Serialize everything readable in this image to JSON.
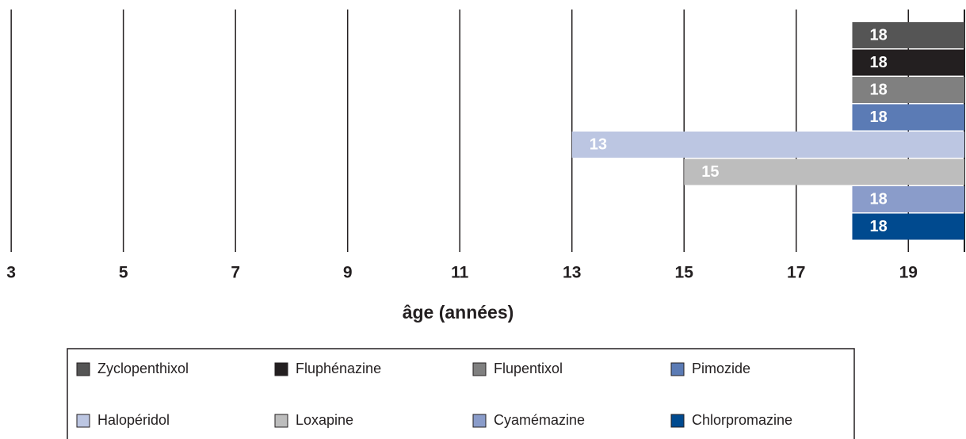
{
  "chart_data": {
    "type": "bar",
    "orientation": "horizontal",
    "xlabel": "âge (années)",
    "xlim": [
      2.8,
      20
    ],
    "xticks": [
      3,
      5,
      7,
      9,
      11,
      13,
      15,
      17,
      19
    ],
    "grid": true,
    "series": [
      {
        "name": "Zyclopenthixol",
        "color": "#555555",
        "values": [
          18
        ]
      },
      {
        "name": "Fluphénazine",
        "color": "#231f20",
        "values": [
          18
        ]
      },
      {
        "name": "Flupentixol",
        "color": "#808080",
        "values": [
          18
        ]
      },
      {
        "name": "Pimozide",
        "color": "#5b7bb5",
        "values": [
          18
        ]
      },
      {
        "name": "Halopéridol",
        "color": "#bcc6e2",
        "values": [
          13
        ]
      },
      {
        "name": "Loxapine",
        "color": "#bdbdbd",
        "values": [
          15
        ]
      },
      {
        "name": "Cyamémazine",
        "color": "#8a9cca",
        "values": [
          18
        ]
      },
      {
        "name": "Chlorpromazine",
        "color": "#004a8f",
        "values": [
          18
        ]
      }
    ],
    "legend": "bottom"
  }
}
